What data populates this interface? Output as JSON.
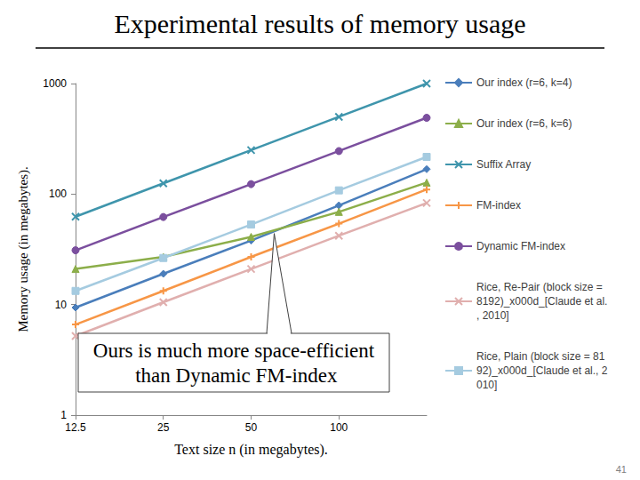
{
  "chart_data": {
    "type": "line",
    "title": "Experimental results of memory usage",
    "x_label": "Text size n (in megabytes).",
    "y_label": "Memory usage (in megabytes).",
    "log": true,
    "grid": false,
    "legend": "right",
    "x": [
      12.5,
      25,
      50,
      100,
      200
    ],
    "xlim": [
      12.5,
      200
    ],
    "xticks": [
      12.5,
      25,
      50,
      100
    ],
    "ylim": [
      1,
      1000
    ],
    "yticks": [
      1,
      10,
      100,
      1000
    ],
    "series": [
      {
        "name": "Our index (r=6, k=4)",
        "color": "#4A7EBB",
        "marker": "diamond",
        "values": [
          9.4,
          19,
          38,
          79,
          168
        ]
      },
      {
        "name": "Our index (r=6, k=6)",
        "color": "#8CAE4A",
        "marker": "triangle",
        "values": [
          21,
          27,
          41,
          69,
          127
        ]
      },
      {
        "name": "Suffix Array",
        "color": "#3F95AC",
        "marker": "x",
        "values": [
          62.5,
          125,
          250,
          500,
          1000
        ]
      },
      {
        "name": "FM-index",
        "color": "#F79646",
        "marker": "plus",
        "values": [
          6.6,
          13.3,
          27,
          54,
          110
        ]
      },
      {
        "name": "Dynamic FM-index",
        "color": "#7B4F9E",
        "marker": "circle",
        "values": [
          31,
          62,
          123,
          245,
          490
        ]
      },
      {
        "name": "Rice, Re-Pair (block size = 8192)_x000d_[Claude et al., 2010]",
        "color": "#E0AFAE",
        "marker": "x",
        "values": [
          5.2,
          10.5,
          21,
          42,
          83
        ]
      },
      {
        "name": "Rice, Plain (block size = 8192)_x000d_[Claude et al., 2010]",
        "color": "#A5CBE0",
        "marker": "square",
        "values": [
          13.3,
          26.4,
          53,
          108,
          217
        ]
      }
    ],
    "annotations": [
      {
        "text": "Ours is much more space-efficient than Dynamic FM-index",
        "x": 60,
        "y": 44
      }
    ],
    "page_number": "41"
  }
}
